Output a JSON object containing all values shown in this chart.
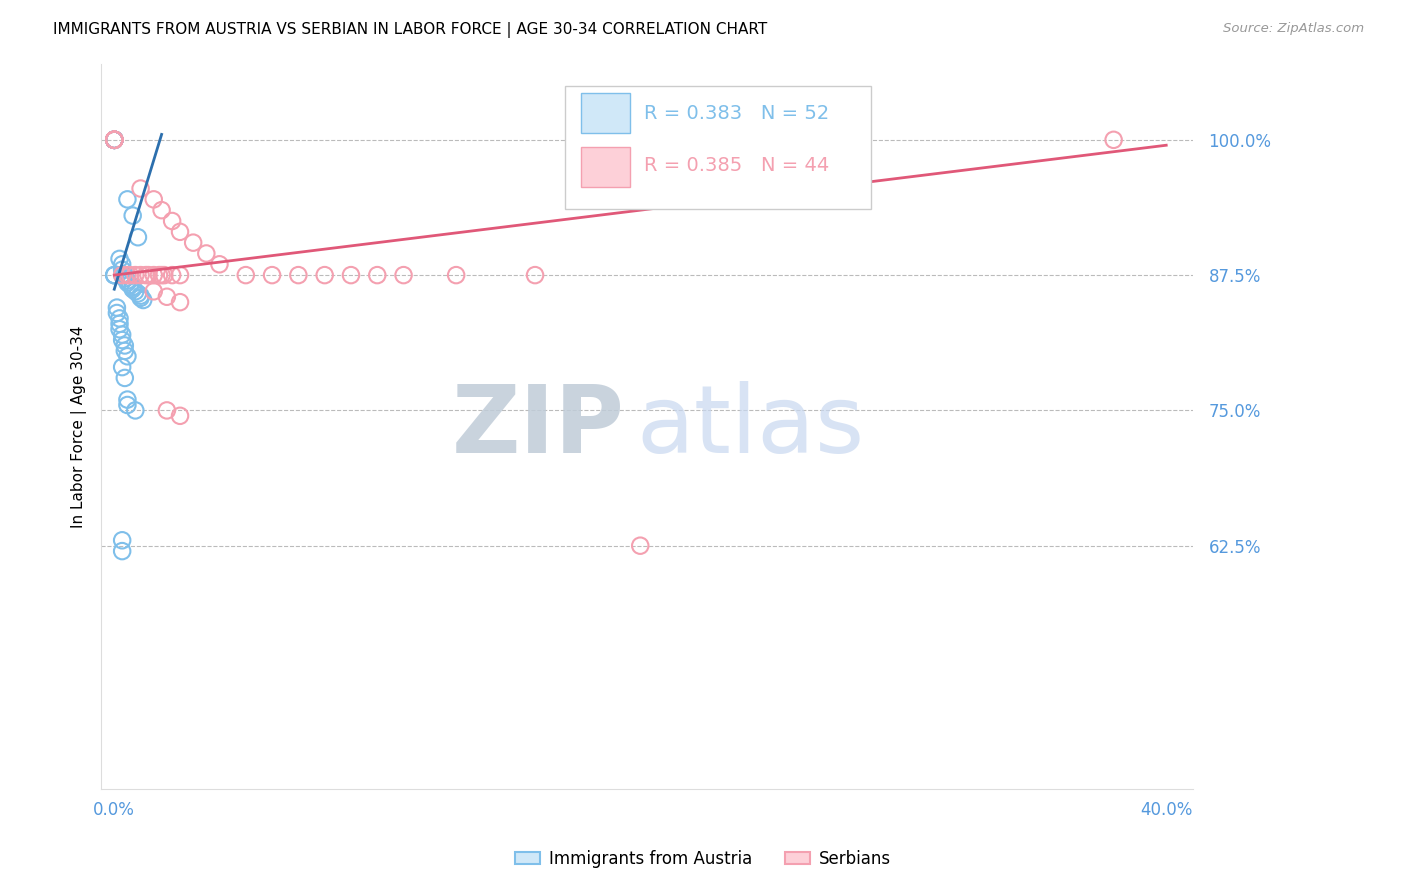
{
  "title": "IMMIGRANTS FROM AUSTRIA VS SERBIAN IN LABOR FORCE | AGE 30-34 CORRELATION CHART",
  "source": "Source: ZipAtlas.com",
  "ylabel": "In Labor Force | Age 30-34",
  "legend_label_austria": "Immigrants from Austria",
  "legend_label_serbia": "Serbians",
  "legend_R_austria": "0.383",
  "legend_N_austria": "52",
  "legend_R_serbia": "0.385",
  "legend_N_serbia": "44",
  "austria_color": "#7fbfea",
  "serbia_color": "#f4a0b0",
  "austria_line_color": "#2c6fad",
  "serbia_line_color": "#e05878",
  "background_color": "#ffffff",
  "grid_color": "#bbbbbb",
  "tick_color": "#5599dd",
  "watermark_zip_color": "#c8d8e8",
  "watermark_atlas_color": "#c8d8f8",
  "xlim": [
    -0.005,
    0.41
  ],
  "ylim": [
    0.4,
    1.07
  ],
  "yticks": [
    0.625,
    0.75,
    0.875,
    1.0
  ],
  "ytick_labels": [
    "62.5%",
    "75.0%",
    "87.5%",
    "100.0%"
  ],
  "xticks": [
    0.0,
    0.05,
    0.1,
    0.15,
    0.2,
    0.25,
    0.3,
    0.35,
    0.4
  ],
  "xtick_labels_show": [
    "0.0%",
    "",
    "",
    "",
    "",
    "",
    "",
    "",
    "40.0%"
  ],
  "austria_x": [
    0.0,
    0.0,
    0.0,
    0.0,
    0.0,
    0.0,
    0.0,
    0.0,
    0.0,
    0.0,
    0.0,
    0.0,
    0.0,
    0.005,
    0.007,
    0.009,
    0.002,
    0.003,
    0.003,
    0.003,
    0.004,
    0.004,
    0.005,
    0.005,
    0.006,
    0.007,
    0.007,
    0.008,
    0.009,
    0.01,
    0.01,
    0.011,
    0.001,
    0.001,
    0.002,
    0.002,
    0.002,
    0.003,
    0.003,
    0.004,
    0.004,
    0.005,
    0.003,
    0.004,
    0.005,
    0.005,
    0.008,
    0.003,
    0.003,
    0.0,
    0.0,
    0.0
  ],
  "austria_y": [
    1.0,
    1.0,
    1.0,
    1.0,
    1.0,
    1.0,
    1.0,
    1.0,
    1.0,
    1.0,
    1.0,
    1.0,
    1.0,
    0.945,
    0.93,
    0.91,
    0.89,
    0.885,
    0.88,
    0.875,
    0.875,
    0.872,
    0.87,
    0.868,
    0.866,
    0.864,
    0.862,
    0.86,
    0.858,
    0.856,
    0.854,
    0.852,
    0.845,
    0.84,
    0.835,
    0.83,
    0.825,
    0.82,
    0.815,
    0.81,
    0.805,
    0.8,
    0.79,
    0.78,
    0.76,
    0.755,
    0.75,
    0.63,
    0.62,
    0.875,
    0.875,
    0.875
  ],
  "serbia_x": [
    0.0,
    0.0,
    0.0,
    0.0,
    0.0,
    0.0,
    0.0,
    0.01,
    0.015,
    0.018,
    0.022,
    0.025,
    0.03,
    0.035,
    0.04,
    0.05,
    0.06,
    0.07,
    0.08,
    0.09,
    0.1,
    0.11,
    0.13,
    0.16,
    0.2,
    0.38,
    0.003,
    0.005,
    0.006,
    0.008,
    0.01,
    0.012,
    0.013,
    0.015,
    0.017,
    0.018,
    0.019,
    0.022,
    0.025,
    0.015,
    0.02,
    0.025,
    0.02,
    0.025
  ],
  "serbia_y": [
    1.0,
    1.0,
    1.0,
    1.0,
    1.0,
    1.0,
    1.0,
    0.955,
    0.945,
    0.935,
    0.925,
    0.915,
    0.905,
    0.895,
    0.885,
    0.875,
    0.875,
    0.875,
    0.875,
    0.875,
    0.875,
    0.875,
    0.875,
    0.875,
    0.625,
    1.0,
    0.875,
    0.875,
    0.875,
    0.875,
    0.875,
    0.875,
    0.875,
    0.875,
    0.875,
    0.875,
    0.875,
    0.875,
    0.875,
    0.86,
    0.855,
    0.85,
    0.75,
    0.745
  ],
  "austria_trendline_x": [
    0.0,
    0.018
  ],
  "austria_trendline_y": [
    0.862,
    1.005
  ],
  "serbia_trendline_x": [
    0.0,
    0.4
  ],
  "serbia_trendline_y": [
    0.875,
    0.995
  ]
}
